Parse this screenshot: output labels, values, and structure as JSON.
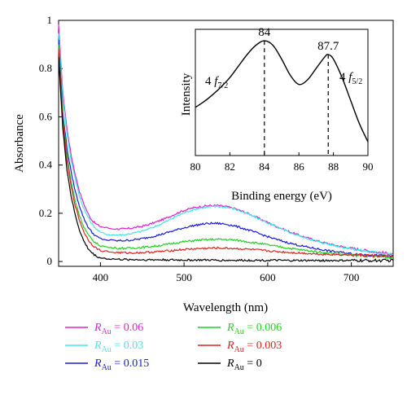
{
  "chart_data": [
    {
      "type": "line",
      "title": "",
      "xlabel": "Wavelength (nm)",
      "ylabel": "Absorbance",
      "xlim": [
        350,
        750
      ],
      "ylim": [
        -0.02,
        1.0
      ],
      "x_ticks": [
        "400",
        "500",
        "600",
        "700"
      ],
      "y_ticks": [
        "0",
        "0.2",
        "0.4",
        "0.6",
        "0.8",
        "1"
      ],
      "legend_position": "bottom",
      "x": [
        350,
        355,
        360,
        365,
        370,
        375,
        380,
        385,
        390,
        395,
        400,
        410,
        420,
        430,
        440,
        450,
        460,
        470,
        480,
        490,
        500,
        510,
        520,
        530,
        540,
        550,
        560,
        570,
        580,
        590,
        600,
        610,
        620,
        630,
        640,
        650,
        660,
        670,
        680,
        690,
        700,
        710,
        720,
        730,
        740,
        750
      ],
      "series": [
        {
          "name": "R_Au = 0.06",
          "legend_symbol": "R",
          "legend_sub": "Au",
          "legend_value": " = 0.06",
          "color": "#e020d0",
          "values": [
            0.98,
            0.7,
            0.55,
            0.44,
            0.36,
            0.29,
            0.24,
            0.2,
            0.17,
            0.155,
            0.145,
            0.138,
            0.135,
            0.135,
            0.14,
            0.146,
            0.156,
            0.168,
            0.182,
            0.198,
            0.212,
            0.222,
            0.228,
            0.232,
            0.232,
            0.228,
            0.22,
            0.208,
            0.194,
            0.178,
            0.162,
            0.146,
            0.132,
            0.118,
            0.106,
            0.095,
            0.085,
            0.076,
            0.068,
            0.061,
            0.055,
            0.049,
            0.044,
            0.039,
            0.035,
            0.031
          ]
        },
        {
          "name": "R_Au = 0.03",
          "legend_symbol": "R",
          "legend_sub": "Au",
          "legend_value": " = 0.03",
          "color": "#40e8e8",
          "values": [
            0.95,
            0.68,
            0.53,
            0.42,
            0.34,
            0.27,
            0.22,
            0.185,
            0.155,
            0.135,
            0.12,
            0.112,
            0.11,
            0.112,
            0.118,
            0.126,
            0.138,
            0.152,
            0.168,
            0.186,
            0.202,
            0.214,
            0.222,
            0.226,
            0.228,
            0.225,
            0.218,
            0.206,
            0.192,
            0.176,
            0.16,
            0.144,
            0.129,
            0.116,
            0.104,
            0.093,
            0.083,
            0.074,
            0.066,
            0.059,
            0.053,
            0.047,
            0.042,
            0.037,
            0.033,
            0.029
          ]
        },
        {
          "name": "R_Au = 0.015",
          "legend_symbol": "R",
          "legend_sub": "Au",
          "legend_value": " = 0.015",
          "color": "#1a1adc",
          "values": [
            0.92,
            0.62,
            0.47,
            0.37,
            0.29,
            0.23,
            0.18,
            0.145,
            0.12,
            0.104,
            0.095,
            0.088,
            0.086,
            0.087,
            0.09,
            0.095,
            0.102,
            0.11,
            0.12,
            0.13,
            0.14,
            0.148,
            0.154,
            0.158,
            0.158,
            0.155,
            0.148,
            0.138,
            0.127,
            0.115,
            0.103,
            0.092,
            0.082,
            0.073,
            0.065,
            0.058,
            0.052,
            0.046,
            0.041,
            0.037,
            0.033,
            0.03,
            0.027,
            0.024,
            0.022,
            0.02
          ]
        },
        {
          "name": "R_Au = 0.006",
          "legend_symbol": "R",
          "legend_sub": "Au",
          "legend_value": " = 0.006",
          "color": "#20d020",
          "values": [
            0.9,
            0.6,
            0.44,
            0.33,
            0.25,
            0.19,
            0.145,
            0.112,
            0.09,
            0.075,
            0.066,
            0.058,
            0.055,
            0.055,
            0.056,
            0.059,
            0.062,
            0.066,
            0.071,
            0.077,
            0.082,
            0.086,
            0.089,
            0.091,
            0.092,
            0.091,
            0.089,
            0.085,
            0.08,
            0.075,
            0.069,
            0.063,
            0.058,
            0.053,
            0.048,
            0.044,
            0.04,
            0.036,
            0.033,
            0.03,
            0.027,
            0.025,
            0.023,
            0.021,
            0.019,
            0.017
          ]
        },
        {
          "name": "R_Au = 0.003",
          "legend_symbol": "R",
          "legend_sub": "Au",
          "legend_value": " = 0.003",
          "color": "#e02020",
          "values": [
            0.88,
            0.58,
            0.42,
            0.31,
            0.23,
            0.17,
            0.125,
            0.092,
            0.07,
            0.055,
            0.046,
            0.04,
            0.037,
            0.036,
            0.036,
            0.037,
            0.039,
            0.041,
            0.044,
            0.047,
            0.05,
            0.052,
            0.054,
            0.055,
            0.056,
            0.055,
            0.054,
            0.052,
            0.05,
            0.047,
            0.044,
            0.041,
            0.039,
            0.037,
            0.035,
            0.033,
            0.031,
            0.03,
            0.029,
            0.028,
            0.027,
            0.026,
            0.025,
            0.024,
            0.023,
            0.022
          ]
        },
        {
          "name": "R_Au = 0",
          "legend_symbol": "R",
          "legend_sub": "Au",
          "legend_value": " = 0",
          "color": "#000000",
          "values": [
            0.85,
            0.55,
            0.38,
            0.27,
            0.19,
            0.13,
            0.085,
            0.055,
            0.035,
            0.022,
            0.015,
            0.011,
            0.009,
            0.008,
            0.008,
            0.007,
            0.007,
            0.007,
            0.007,
            0.006,
            0.006,
            0.006,
            0.006,
            0.006,
            0.005,
            0.005,
            0.005,
            0.005,
            0.005,
            0.005,
            0.005,
            0.005,
            0.004,
            0.004,
            0.004,
            0.004,
            0.004,
            0.004,
            0.004,
            0.004,
            0.004,
            0.004,
            0.004,
            0.004,
            0.004,
            0.004
          ]
        }
      ]
    },
    {
      "type": "line",
      "title": "",
      "xlabel": "Binding energy (eV)",
      "ylabel": "Intensity",
      "xlim": [
        80,
        90
      ],
      "ylim": [
        0,
        1.1
      ],
      "x_ticks": [
        "80",
        "82",
        "84",
        "86",
        "88",
        "90"
      ],
      "annotations": [
        {
          "text": "84",
          "x": 84
        },
        {
          "text": "87.7",
          "x": 87.7
        }
      ],
      "peak_labels": [
        {
          "prefix": "4",
          "f": "f",
          "sub": "7/2"
        },
        {
          "prefix": "4",
          "f": "f",
          "sub": "5/2"
        }
      ],
      "x": [
        80,
        80.5,
        81,
        81.5,
        82,
        82.5,
        83,
        83.5,
        84,
        84.5,
        85,
        85.5,
        86,
        86.5,
        87,
        87.5,
        87.7,
        88,
        88.5,
        89,
        89.5,
        90
      ],
      "series": [
        {
          "color": "#000000",
          "values": [
            0.42,
            0.47,
            0.53,
            0.6,
            0.68,
            0.78,
            0.88,
            0.96,
            1.0,
            0.96,
            0.84,
            0.7,
            0.62,
            0.66,
            0.76,
            0.86,
            0.88,
            0.84,
            0.68,
            0.48,
            0.28,
            0.12
          ]
        }
      ]
    }
  ]
}
